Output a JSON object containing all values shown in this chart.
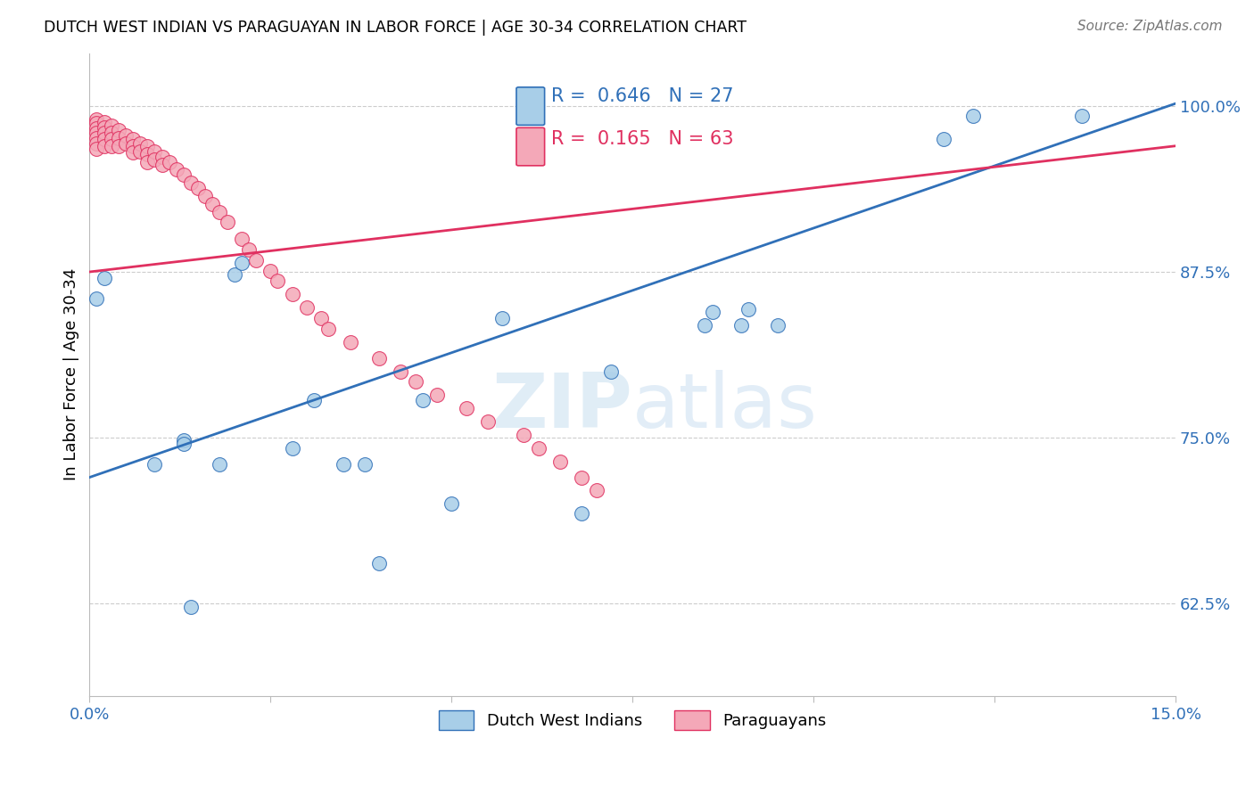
{
  "title": "DUTCH WEST INDIAN VS PARAGUAYAN IN LABOR FORCE | AGE 30-34 CORRELATION CHART",
  "source_text": "Source: ZipAtlas.com",
  "ylabel": "In Labor Force | Age 30-34",
  "xlim": [
    0.0,
    0.15
  ],
  "ylim": [
    0.555,
    1.04
  ],
  "yticks": [
    0.625,
    0.75,
    0.875,
    1.0
  ],
  "ytick_labels": [
    "62.5%",
    "75.0%",
    "87.5%",
    "100.0%"
  ],
  "blue_color": "#A8CEE8",
  "pink_color": "#F4A8B8",
  "blue_line_color": "#3070B8",
  "pink_line_color": "#E03060",
  "legend_r1": "0.646",
  "legend_n1": "27",
  "legend_r2": "0.165",
  "legend_n2": "63",
  "watermark": "ZIPatlas",
  "dwi_x": [
    0.001,
    0.002,
    0.009,
    0.013,
    0.013,
    0.014,
    0.018,
    0.02,
    0.021,
    0.028,
    0.031,
    0.035,
    0.038,
    0.04,
    0.046,
    0.05,
    0.057,
    0.068,
    0.072,
    0.085,
    0.086,
    0.09,
    0.091,
    0.095,
    0.118,
    0.122,
    0.137
  ],
  "dwi_y": [
    0.855,
    0.87,
    0.73,
    0.748,
    0.745,
    0.622,
    0.73,
    0.873,
    0.882,
    0.742,
    0.778,
    0.73,
    0.73,
    0.655,
    0.778,
    0.7,
    0.84,
    0.693,
    0.8,
    0.835,
    0.845,
    0.835,
    0.847,
    0.835,
    0.975,
    0.993,
    0.993
  ],
  "par_x": [
    0.001,
    0.001,
    0.001,
    0.001,
    0.001,
    0.001,
    0.001,
    0.002,
    0.002,
    0.002,
    0.002,
    0.002,
    0.003,
    0.003,
    0.003,
    0.003,
    0.004,
    0.004,
    0.004,
    0.005,
    0.005,
    0.006,
    0.006,
    0.006,
    0.007,
    0.007,
    0.008,
    0.008,
    0.008,
    0.009,
    0.009,
    0.01,
    0.01,
    0.011,
    0.012,
    0.013,
    0.014,
    0.015,
    0.016,
    0.017,
    0.018,
    0.019,
    0.021,
    0.022,
    0.023,
    0.025,
    0.026,
    0.028,
    0.03,
    0.032,
    0.033,
    0.036,
    0.04,
    0.043,
    0.045,
    0.048,
    0.052,
    0.055,
    0.06,
    0.062,
    0.065,
    0.068,
    0.07
  ],
  "par_y": [
    0.99,
    0.987,
    0.983,
    0.98,
    0.976,
    0.972,
    0.968,
    0.988,
    0.984,
    0.98,
    0.975,
    0.97,
    0.985,
    0.98,
    0.975,
    0.97,
    0.982,
    0.976,
    0.97,
    0.978,
    0.972,
    0.975,
    0.97,
    0.965,
    0.972,
    0.966,
    0.97,
    0.964,
    0.958,
    0.966,
    0.96,
    0.962,
    0.956,
    0.958,
    0.952,
    0.948,
    0.942,
    0.938,
    0.932,
    0.926,
    0.92,
    0.913,
    0.9,
    0.892,
    0.884,
    0.876,
    0.868,
    0.858,
    0.848,
    0.84,
    0.832,
    0.822,
    0.81,
    0.8,
    0.792,
    0.782,
    0.772,
    0.762,
    0.752,
    0.742,
    0.732,
    0.72,
    0.71
  ]
}
